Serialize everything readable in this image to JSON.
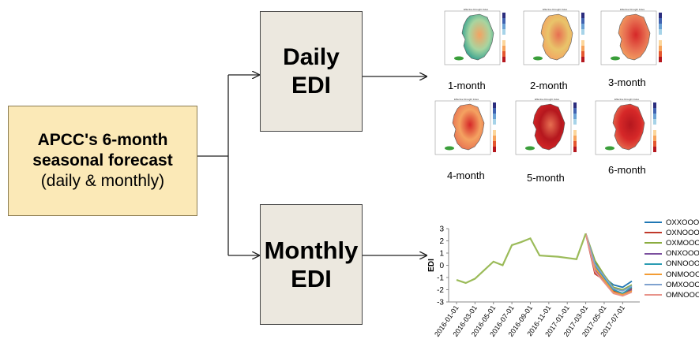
{
  "source_box": {
    "line1": "APCC's 6-month",
    "line2": "seasonal forecast",
    "line3": "(daily & monthly)"
  },
  "daily_box": {
    "line1": "Daily",
    "line2": "EDI"
  },
  "monthly_box": {
    "line1": "Monthly",
    "line2": "EDI"
  },
  "maps": [
    {
      "label": "1-month",
      "title": "Effective Drought Index"
    },
    {
      "label": "2-month",
      "title": "Effective Drought Index"
    },
    {
      "label": "3-month",
      "title": "Effective Drought Index"
    },
    {
      "label": "4-month",
      "title": "Effective Drought Index"
    },
    {
      "label": "5-month",
      "title": "Effective Drought Index"
    },
    {
      "label": "6-month",
      "title": "Effective Drought Index"
    }
  ],
  "colors": {
    "source_fill": "#fbe9b7",
    "edi_fill": "#ece8df",
    "arrow": "#222222",
    "history_line": "#9bbb59"
  },
  "chart_data": {
    "type": "line",
    "ylabel": "EDI",
    "xlabel": "",
    "ylim": [
      -3,
      3
    ],
    "yticks": [
      "3",
      "2",
      "1",
      "0",
      "-1",
      "-2",
      "-3"
    ],
    "xticks": [
      "2016-01-01",
      "2016-03-01",
      "2016-05-01",
      "2016-07-01",
      "2016-09-01",
      "2016-11-01",
      "2017-01-01",
      "2017-03-01",
      "2017-05-01",
      "2017-07-01"
    ],
    "legend_position": "right",
    "history": {
      "x": [
        "2016-01",
        "2016-02",
        "2016-03",
        "2016-04",
        "2016-05",
        "2016-06",
        "2016-07",
        "2016-08",
        "2016-09",
        "2016-10",
        "2016-11",
        "2016-12",
        "2017-01",
        "2017-02",
        "2017-03"
      ],
      "values": [
        -1.2,
        -1.45,
        -1.1,
        -0.4,
        0.3,
        0.0,
        1.65,
        1.9,
        2.2,
        0.8,
        0.75,
        0.7,
        0.6,
        0.5,
        2.6
      ]
    },
    "forecast_x": [
      "2017-03",
      "2017-04",
      "2017-05",
      "2017-06",
      "2017-07",
      "2017-08"
    ],
    "series": [
      {
        "name": "OXXOOO",
        "color": "#1f77b4",
        "values": [
          2.6,
          0.2,
          -1.0,
          -1.6,
          -1.8,
          -1.3
        ]
      },
      {
        "name": "OXNOOO",
        "color": "#c0392b",
        "values": [
          2.6,
          -0.7,
          -1.2,
          -2.1,
          -2.3,
          -1.9
        ]
      },
      {
        "name": "OXMOOO",
        "color": "#8aac3f",
        "values": [
          2.6,
          0.4,
          -0.8,
          -1.8,
          -2.0,
          -1.6
        ]
      },
      {
        "name": "ONXOOO",
        "color": "#7b4f9e",
        "values": [
          2.6,
          -0.4,
          -1.3,
          -2.2,
          -2.4,
          -2.0
        ]
      },
      {
        "name": "ONNOOO",
        "color": "#2b9cb3",
        "values": [
          2.6,
          0.0,
          -1.1,
          -2.0,
          -2.3,
          -1.8
        ]
      },
      {
        "name": "ONMOOO",
        "color": "#f39c34",
        "values": [
          2.6,
          -0.2,
          -1.2,
          -2.2,
          -2.4,
          -2.1
        ]
      },
      {
        "name": "OMXOOO",
        "color": "#7fa2cf",
        "values": [
          2.6,
          0.1,
          -0.9,
          -1.9,
          -2.1,
          -1.7
        ]
      },
      {
        "name": "OMNOOO",
        "color": "#e8938a",
        "values": [
          2.6,
          -0.5,
          -1.4,
          -2.3,
          -2.5,
          -2.2
        ]
      }
    ]
  }
}
